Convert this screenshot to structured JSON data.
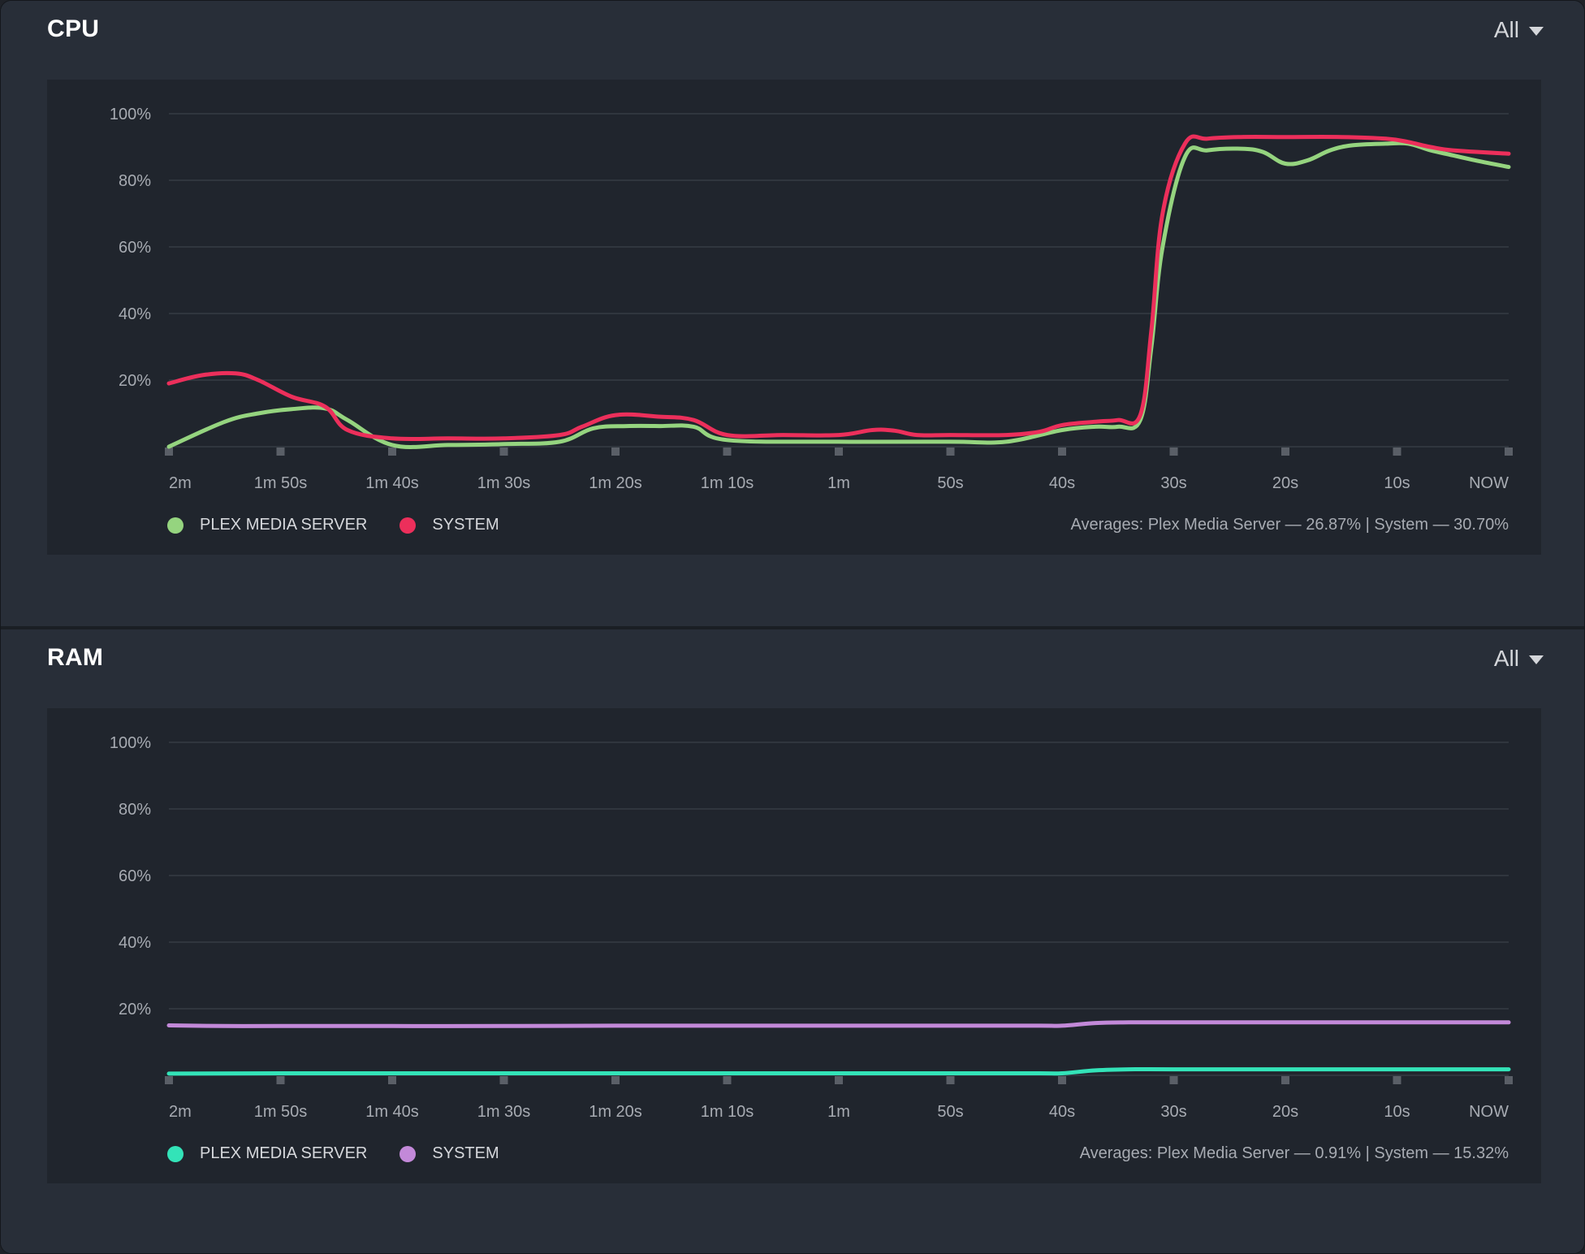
{
  "panels": [
    {
      "id": "cpu",
      "title": "CPU",
      "filter": "All",
      "legend": [
        {
          "label": "PLEX MEDIA SERVER",
          "color": "#95d47f"
        },
        {
          "label": "SYSTEM",
          "color": "#ec2f5b"
        }
      ],
      "averages_text": "Averages: Plex Media Server — 26.87% | System — 30.70%"
    },
    {
      "id": "ram",
      "title": "RAM",
      "filter": "All",
      "legend": [
        {
          "label": "PLEX MEDIA SERVER",
          "color": "#33e3b8"
        },
        {
          "label": "SYSTEM",
          "color": "#c389d9"
        }
      ],
      "averages_text": "Averages: Plex Media Server — 0.91% | System — 15.32%"
    }
  ],
  "chart_data": [
    {
      "type": "line",
      "title": "CPU",
      "x_ticks": [
        "2m",
        "1m 50s",
        "1m 40s",
        "1m 30s",
        "1m 20s",
        "1m 10s",
        "1m",
        "50s",
        "40s",
        "30s",
        "20s",
        "10s",
        "NOW"
      ],
      "y_ticks": [
        "100%",
        "80%",
        "60%",
        "40%",
        "20%"
      ],
      "ylim": [
        0,
        100
      ],
      "xlim": [
        -120,
        0
      ],
      "grid": true,
      "legend_position": "bottom-left",
      "series": [
        {
          "name": "PLEX MEDIA SERVER",
          "color": "#95d47f",
          "x": [
            -120,
            -115,
            -112,
            -109,
            -106,
            -104,
            -100,
            -95,
            -90,
            -85,
            -82,
            -79,
            -76,
            -73,
            -70,
            -60,
            -50,
            -45,
            -40,
            -37,
            -35,
            -33,
            -32,
            -31,
            -29,
            -27,
            -24,
            -22,
            -20,
            -18,
            -16,
            -14,
            -11,
            -9,
            -7,
            -5,
            -3,
            0
          ],
          "y": [
            0,
            7.5,
            10,
            11.3,
            11.5,
            8,
            0.5,
            0.5,
            0.8,
            1.5,
            5.5,
            6.2,
            6.2,
            6,
            2,
            1.5,
            1.5,
            1.5,
            5,
            6,
            6,
            8,
            30,
            60,
            87,
            89,
            89.5,
            88.5,
            85,
            86,
            89,
            90.5,
            91,
            91,
            89,
            87.5,
            86,
            84
          ]
        },
        {
          "name": "SYSTEM",
          "color": "#ec2f5b",
          "x": [
            -120,
            -117,
            -114,
            -112,
            -109,
            -106,
            -104,
            -100,
            -95,
            -90,
            -85,
            -83,
            -80,
            -76,
            -73,
            -70,
            -65,
            -60,
            -57,
            -55,
            -53,
            -50,
            -45,
            -42,
            -40,
            -37,
            -35,
            -33,
            -32,
            -31,
            -29,
            -27,
            -24,
            -20,
            -15,
            -11,
            -9,
            -7,
            -5,
            0
          ],
          "y": [
            19,
            21.5,
            22,
            20,
            15,
            12,
            5,
            2.5,
            2.5,
            2.5,
            3.5,
            6,
            9.5,
            9,
            8,
            3.5,
            3.5,
            3.5,
            5,
            4.8,
            3.5,
            3.5,
            3.5,
            4.5,
            6.5,
            7.5,
            8,
            9.5,
            35,
            70,
            91,
            92.5,
            93,
            93,
            93,
            92.5,
            91.5,
            90,
            89,
            88
          ]
        }
      ]
    },
    {
      "type": "line",
      "title": "RAM",
      "x_ticks": [
        "2m",
        "1m 50s",
        "1m 40s",
        "1m 30s",
        "1m 20s",
        "1m 10s",
        "1m",
        "50s",
        "40s",
        "30s",
        "20s",
        "10s",
        "NOW"
      ],
      "y_ticks": [
        "100%",
        "80%",
        "60%",
        "40%",
        "20%"
      ],
      "ylim": [
        0,
        100
      ],
      "xlim": [
        -120,
        0
      ],
      "grid": true,
      "legend_position": "bottom-left",
      "series": [
        {
          "name": "PLEX MEDIA SERVER",
          "color": "#33e3b8",
          "x": [
            -120,
            -110,
            -100,
            -90,
            -80,
            -70,
            -60,
            -50,
            -42,
            -40,
            -37,
            -34,
            -30,
            -20,
            -10,
            0
          ],
          "y": [
            0.5,
            0.6,
            0.6,
            0.6,
            0.6,
            0.6,
            0.6,
            0.6,
            0.6,
            0.6,
            1.5,
            1.8,
            1.8,
            1.8,
            1.8,
            1.8
          ]
        },
        {
          "name": "SYSTEM",
          "color": "#c389d9",
          "x": [
            -120,
            -115,
            -110,
            -100,
            -90,
            -80,
            -70,
            -60,
            -50,
            -42,
            -40,
            -37,
            -34,
            -30,
            -20,
            -10,
            0
          ],
          "y": [
            15,
            14.8,
            14.8,
            14.8,
            14.8,
            14.9,
            14.9,
            14.9,
            14.9,
            14.9,
            14.9,
            15.7,
            15.9,
            15.9,
            15.9,
            15.9,
            15.9
          ]
        }
      ]
    }
  ]
}
